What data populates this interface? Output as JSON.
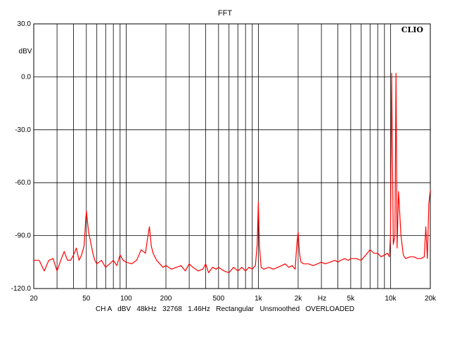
{
  "chart_data": {
    "type": "line",
    "title": "FFT",
    "ylabel": "dBV",
    "xlabel": "Hz",
    "logo": "CLIO",
    "xscale": "log",
    "xlim": [
      20,
      20000
    ],
    "ylim": [
      -120,
      30
    ],
    "grid": true,
    "line_color": "#ff0000",
    "y_ticks": [
      "30.0",
      "0.0",
      "-30.0",
      "-60.0",
      "-90.0",
      "-120.0"
    ],
    "y_tick_values": [
      30,
      0,
      -30,
      -60,
      -90,
      -120
    ],
    "x_ticks": [
      {
        "value": 20,
        "label": "20"
      },
      {
        "value": 50,
        "label": "50"
      },
      {
        "value": 100,
        "label": "100"
      },
      {
        "value": 200,
        "label": "200"
      },
      {
        "value": 500,
        "label": "500"
      },
      {
        "value": 1000,
        "label": "1k"
      },
      {
        "value": 2000,
        "label": "2k"
      },
      {
        "value": 5000,
        "label": "5k"
      },
      {
        "value": 10000,
        "label": "10k"
      },
      {
        "value": 20000,
        "label": "20k"
      }
    ],
    "footer": "CH A   dBV   48kHz   32768   1.46Hz   Rectangular   Unsmoothed   OVERLOADED",
    "series": [
      {
        "x": [
          20,
          22,
          24,
          26,
          28,
          30,
          32,
          34,
          36,
          38,
          40,
          42,
          44,
          46,
          48,
          50,
          52,
          54,
          56,
          58,
          60,
          65,
          70,
          75,
          80,
          85,
          90,
          95,
          100,
          110,
          120,
          130,
          140,
          145,
          150,
          155,
          160,
          170,
          180,
          190,
          200,
          220,
          240,
          260,
          280,
          300,
          320,
          350,
          380,
          400,
          420,
          450,
          480,
          500,
          550,
          600,
          650,
          700,
          750,
          800,
          850,
          900,
          950,
          980,
          1000,
          1020,
          1050,
          1100,
          1200,
          1300,
          1400,
          1500,
          1600,
          1700,
          1800,
          1900,
          1950,
          2000,
          2050,
          2100,
          2200,
          2400,
          2600,
          2800,
          3000,
          3200,
          3500,
          3800,
          4000,
          4200,
          4500,
          4800,
          5000,
          5500,
          6000,
          6500,
          7000,
          7500,
          8000,
          8500,
          9000,
          9500,
          9800,
          10000,
          10200,
          10500,
          10800,
          11000,
          11200,
          11500,
          12000,
          12500,
          13000,
          14000,
          15000,
          16000,
          17000,
          18000,
          18500,
          19000,
          19500,
          20000
        ],
        "y": [
          -104,
          -104,
          -110,
          -104,
          -103,
          -110,
          -104,
          -99,
          -104,
          -104,
          -101,
          -97,
          -104,
          -101,
          -96,
          -76,
          -88,
          -94,
          -100,
          -104,
          -106,
          -104,
          -108,
          -106,
          -104,
          -107,
          -101,
          -104,
          -105,
          -106,
          -104,
          -98,
          -100,
          -92,
          -85,
          -96,
          -100,
          -104,
          -106,
          -108,
          -107,
          -109,
          -108,
          -107,
          -110,
          -106,
          -108,
          -110,
          -109,
          -106,
          -111,
          -108,
          -109,
          -108,
          -110,
          -111,
          -108,
          -110,
          -108,
          -110,
          -108,
          -109,
          -107,
          -95,
          -71,
          -96,
          -108,
          -109,
          -108,
          -109,
          -108,
          -107,
          -106,
          -108,
          -107,
          -109,
          -96,
          -88,
          -100,
          -105,
          -106,
          -106,
          -107,
          -106,
          -105,
          -106,
          -105,
          -104,
          -105,
          -104,
          -103,
          -104,
          -103,
          -103,
          -104,
          -101,
          -98,
          -100,
          -100,
          -102,
          -101,
          -100,
          -102,
          -90,
          2,
          -95,
          -90,
          2,
          -97,
          -65,
          -90,
          -101,
          -103,
          -102,
          -102,
          -103,
          -103,
          -102,
          -85,
          -103,
          -72,
          -64
        ]
      }
    ]
  }
}
